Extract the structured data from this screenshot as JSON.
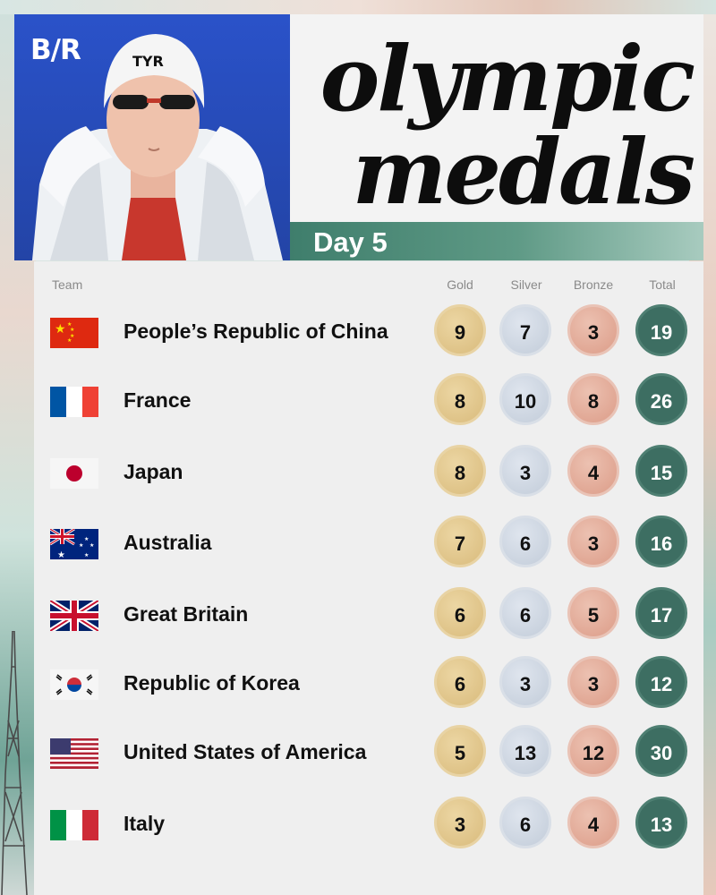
{
  "brand": {
    "logo": "B/R"
  },
  "header": {
    "title_line1": "olympic",
    "title_line2": "medals",
    "day_label": "Day 5"
  },
  "table": {
    "headers": {
      "team": "Team",
      "gold": "Gold",
      "silver": "Silver",
      "bronze": "Bronze",
      "total": "Total"
    },
    "rows": [
      {
        "team": "People’s Republic of China",
        "flag": "china-flag",
        "gold": "9",
        "silver": "7",
        "bronze": "3",
        "total": "19"
      },
      {
        "team": "France",
        "flag": "france-flag",
        "gold": "8",
        "silver": "10",
        "bronze": "8",
        "total": "26"
      },
      {
        "team": "Japan",
        "flag": "japan-flag",
        "gold": "8",
        "silver": "3",
        "bronze": "4",
        "total": "15"
      },
      {
        "team": "Australia",
        "flag": "australia-flag",
        "gold": "7",
        "silver": "6",
        "bronze": "3",
        "total": "16"
      },
      {
        "team": "Great Britain",
        "flag": "great-britain-flag",
        "gold": "6",
        "silver": "6",
        "bronze": "5",
        "total": "17"
      },
      {
        "team": "Republic of Korea",
        "flag": "korea-flag",
        "gold": "6",
        "silver": "3",
        "bronze": "3",
        "total": "12"
      },
      {
        "team": "United States of America",
        "flag": "usa-flag",
        "gold": "5",
        "silver": "13",
        "bronze": "12",
        "total": "30"
      },
      {
        "team": "Italy",
        "flag": "italy-flag",
        "gold": "3",
        "silver": "6",
        "bronze": "4",
        "total": "13"
      }
    ]
  },
  "colors": {
    "gold_medal": "#d9bb7c",
    "silver_medal": "#c2ccd9",
    "bronze_medal": "#dc9c88",
    "total_badge": "#3d6e62",
    "day_band": "#3f7e6c",
    "photo_background": "#2344a6"
  }
}
